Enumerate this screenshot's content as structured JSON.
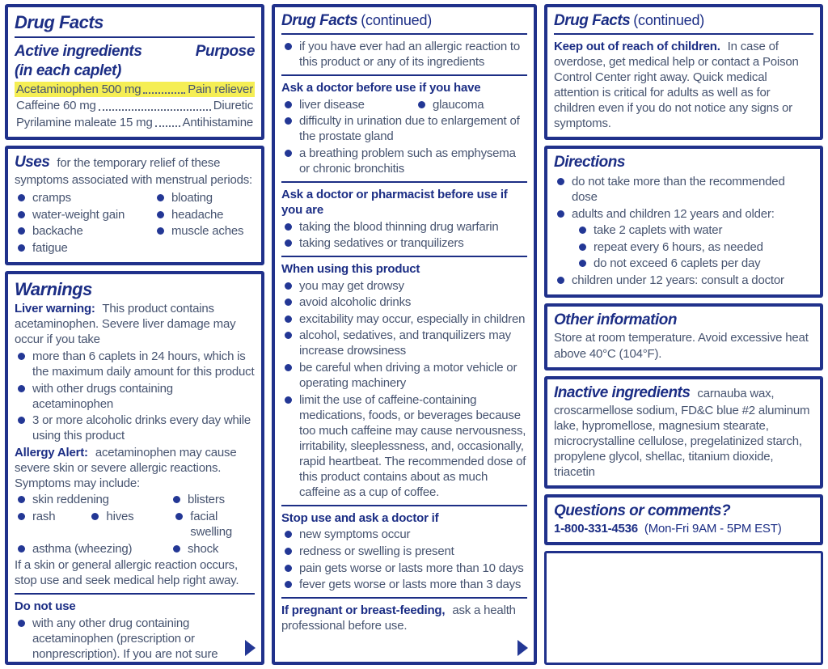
{
  "colors": {
    "border_navy": "#20318b",
    "heading_navy": "#1c2e85",
    "body_text": "#475470",
    "bullet_blue": "#233795",
    "highlight_yellow": "#f5ee54"
  },
  "col1": {
    "panel1": {
      "title": "Drug Facts",
      "active_heading": "Active ingredients",
      "active_subheading": "(in each caplet)",
      "purpose_heading": "Purpose",
      "ingredients": [
        {
          "name": "Acetaminophen 500 mg",
          "purpose": "Pain reliever"
        },
        {
          "name": "Caffeine 60 mg",
          "purpose": "Diuretic"
        },
        {
          "name": "Pyrilamine maleate 15 mg",
          "purpose": "Antihistamine"
        }
      ]
    },
    "uses": {
      "title": "Uses",
      "intro": "for the temporary relief of these symptoms associated with menstrual periods:",
      "left_items": [
        "cramps",
        "water-weight gain",
        "backache",
        "fatigue"
      ],
      "right_items": [
        "bloating",
        "headache",
        "muscle aches"
      ]
    },
    "warnings": {
      "title": "Warnings",
      "liver_label": "Liver warning:",
      "liver_text": "This product contains acetaminophen.  Severe liver damage may occur if you take",
      "liver_bullets": [
        "more than 6 caplets in 24 hours, which is the maximum daily amount for this product",
        "with other drugs containing acetaminophen",
        "3 or more alcoholic drinks every day while using this product"
      ],
      "allergy_label": "Allergy Alert:",
      "allergy_text": "acetaminophen may cause severe skin or severe allergic reactions. Symptoms may include:",
      "symptom_rows": [
        [
          "skin reddening",
          "blisters"
        ],
        [
          "rash",
          "hives",
          "facial swelling"
        ],
        [
          "asthma (wheezing)",
          "shock"
        ]
      ],
      "allergy_footer": "If a skin or general allergic reaction occurs, stop use and seek medical help right away.",
      "do_not_use_title": "Do not use",
      "do_not_use_text": "with any other drug containing acetaminophen (prescription or nonprescription).  If you are not sure whether a drug contains acetaminophen, ask a doctor or pharmacist."
    }
  },
  "col2": {
    "title": "Drug Facts",
    "title_suffix": "(continued)",
    "continued_bullet": "if you have ever had an allergic reaction to this product or any of its ingredients",
    "ask_doctor": {
      "heading": "Ask a doctor before use if you have",
      "pair_row": [
        "liver disease",
        "glaucoma"
      ],
      "bullets": [
        "difficulty in urination due to enlargement of the prostate gland",
        "a breathing problem such as emphysema or chronic bronchitis"
      ]
    },
    "ask_pharmacist": {
      "heading": "Ask a doctor or pharmacist before use if you are",
      "bullets": [
        "taking the blood thinning drug warfarin",
        "taking sedatives or tranquilizers"
      ]
    },
    "when_using": {
      "heading": "When using this product",
      "bullets": [
        "you may get drowsy",
        "avoid alcoholic drinks",
        "excitability may occur, especially in children",
        "alcohol, sedatives, and tranquilizers may increase drowsiness",
        "be careful when driving a motor vehicle or operating machinery",
        "limit the use of caffeine-containing medications, foods, or beverages because too much caffeine may cause nervousness, irritability, sleeplessness, and, occasionally, rapid heartbeat. The recommended dose of this product contains about as much caffeine as a cup of coffee."
      ]
    },
    "stop_use": {
      "heading": "Stop use and ask a doctor if",
      "bullets": [
        "new symptoms occur",
        "redness or swelling is present",
        "pain gets worse or lasts more than 10 days",
        "fever gets worse or lasts more than 3 days"
      ]
    },
    "pregnant_label": "If pregnant or breast-feeding,",
    "pregnant_text": "ask a health professional before use."
  },
  "col3": {
    "panel1": {
      "title": "Drug Facts",
      "title_suffix": "(continued)",
      "keep_label": "Keep out of reach of children.",
      "keep_text": "In case of overdose, get medical help or contact a Poison Control Center right away.  Quick medical attention is critical for adults as well as for children even if you do not notice any signs or symptoms."
    },
    "directions": {
      "title": "Directions",
      "bullet1": "do not take more than the recommended dose",
      "bullet2": "adults and children 12 years and older:",
      "sub_bullets": [
        "take 2 caplets with water",
        "repeat every 6 hours, as needed",
        "do not exceed 6 caplets per day"
      ],
      "bullet3": "children under 12 years: consult a doctor"
    },
    "other_information": {
      "title": "Other information",
      "text": "Store at room temperature. Avoid excessive heat above 40°C (104°F)."
    },
    "inactive_ingredients": {
      "title": "Inactive ingredients",
      "text": "carnauba wax, croscarmellose sodium, FD&C blue #2 aluminum lake, hypromellose, magnesium stearate, microcrystalline cellulose, pregelatinized starch, propylene glycol, shellac, titanium dioxide, triacetin"
    },
    "questions": {
      "title": "Questions or comments?",
      "phone": "1-800-331-4536",
      "hours": "(Mon-Fri 9AM - 5PM EST)"
    }
  }
}
